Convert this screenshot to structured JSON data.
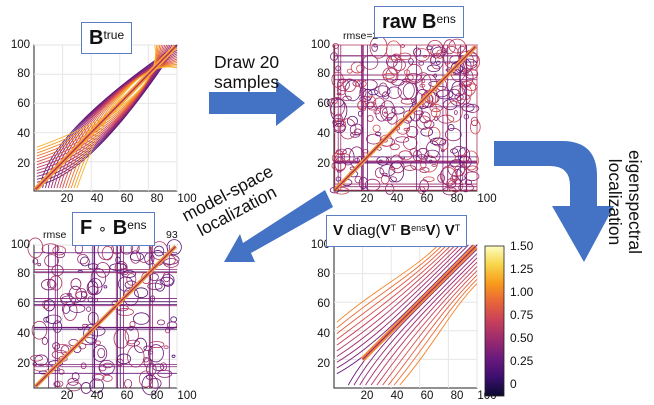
{
  "panels": {
    "btrue": {
      "title_main": "B",
      "title_sup": "true",
      "y_ticks": [
        "100",
        "80",
        "60",
        "40",
        "20"
      ],
      "x_ticks": [
        "20",
        "40",
        "60",
        "80",
        "100"
      ]
    },
    "raw": {
      "title_prefix": "raw ",
      "title_main": "B",
      "title_sup": "ens",
      "rmse_label": "rmse=2",
      "y_ticks": [
        "100",
        "80",
        "60",
        "40",
        "20"
      ],
      "x_ticks": [
        "20",
        "40",
        "60",
        "80",
        "100"
      ]
    },
    "model_space": {
      "title_main": "F",
      "title_op": "∘",
      "title_main2": "B",
      "title_sup": "ens",
      "rmse_left": "rmse",
      "rmse_right": "93",
      "y_ticks": [
        "100",
        "80",
        "60",
        "40",
        "20"
      ],
      "x_ticks": [
        "20",
        "40",
        "60",
        "80",
        "100"
      ]
    },
    "eigen": {
      "title_v": "V",
      "title_diag": " diag(",
      "title_v2": "V",
      "title_sup_t": "T",
      "title_b": " B",
      "title_sup_ens": "ens",
      "title_v3": "V",
      "title_close": ") ",
      "title_v4": "V",
      "title_sup_t2": "T",
      "y_ticks": [
        "100",
        "80",
        "60",
        "40",
        "20"
      ],
      "x_ticks": [
        "20",
        "40",
        "60",
        "80",
        "100"
      ],
      "colorbar_ticks": [
        "1.50",
        "1.25",
        "1.00",
        "0.75",
        "0.50",
        "0.25",
        "0"
      ]
    }
  },
  "arrows": {
    "draw_samples": [
      "Draw 20",
      "samples"
    ],
    "model_space": [
      "model-space",
      "localization"
    ],
    "eigenspectral": [
      "eigenspectral",
      "localization"
    ],
    "arrow_color": "#4472c4"
  },
  "colormap": [
    "#0b0b2e",
    "#3b0f6f",
    "#6a1a7d",
    "#9b2a6e",
    "#c7405a",
    "#e8643a",
    "#f99a1c",
    "#f7d54a",
    "#fcfdbf"
  ]
}
